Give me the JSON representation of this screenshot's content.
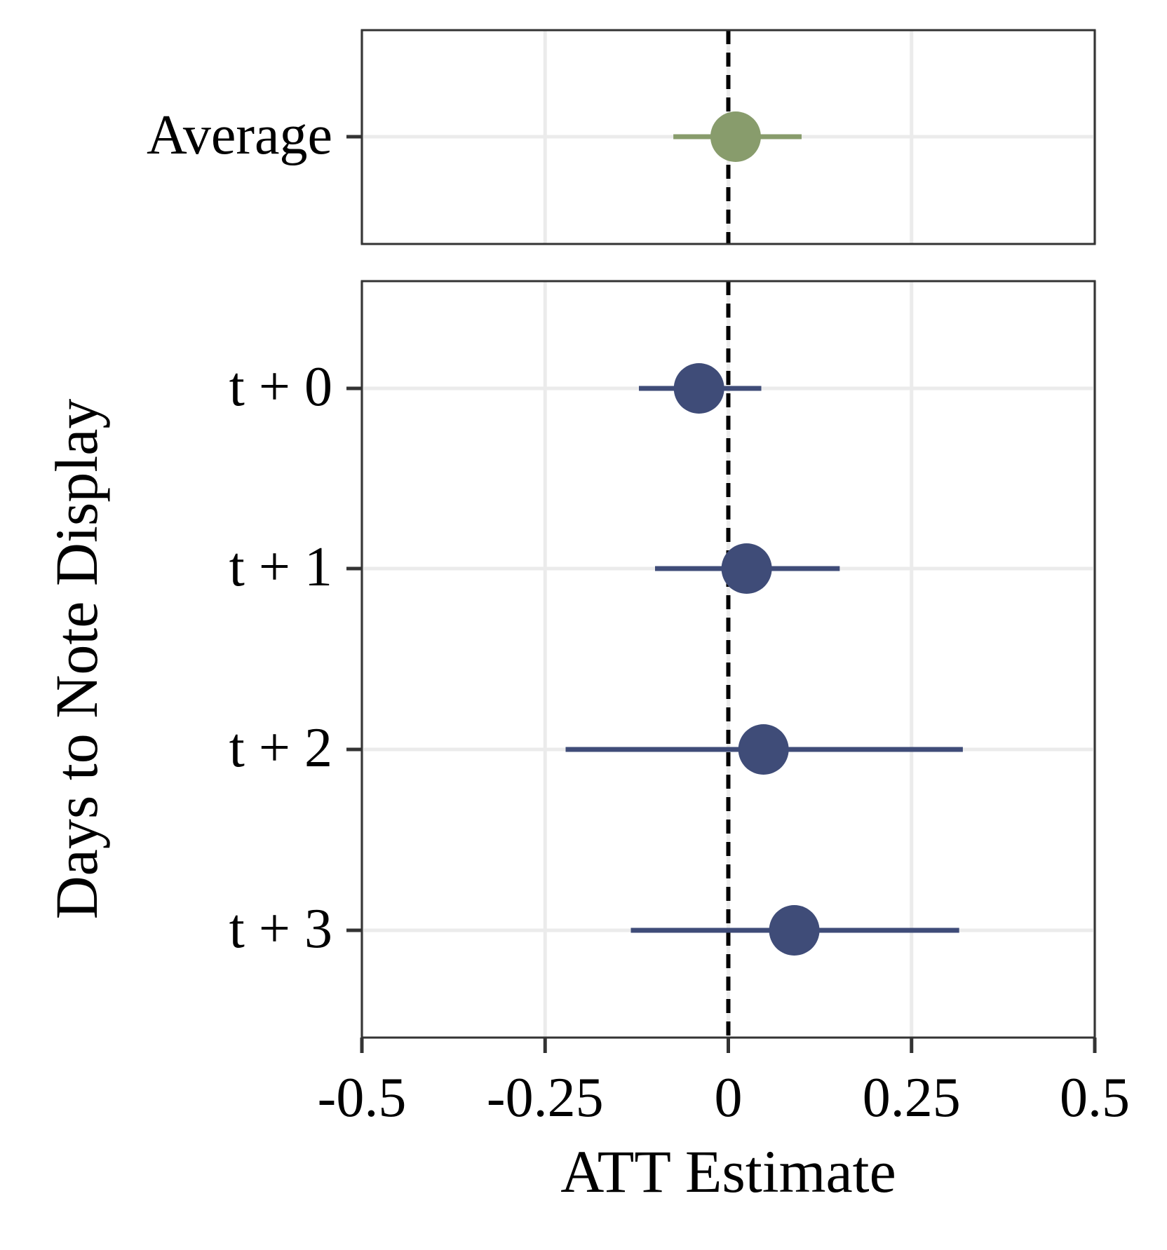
{
  "chart_data": {
    "type": "forest",
    "xlabel": "ATT Estimate",
    "ylabel": "Days to Note Display",
    "xlim": [
      -0.5,
      0.5
    ],
    "xticks": [
      -0.5,
      -0.25,
      0,
      0.25,
      0.5
    ],
    "xtick_labels": [
      "-0.5",
      "-0.25",
      "0",
      "0.25",
      "0.5"
    ],
    "reference_line": 0,
    "grid": true,
    "panels": [
      {
        "name": "average",
        "color": "#889c6c",
        "points": [
          {
            "label": "Average",
            "estimate": 0.01,
            "lower": -0.075,
            "upper": 0.1
          }
        ]
      },
      {
        "name": "by-day",
        "color": "#3f4c78",
        "points": [
          {
            "label": "t + 0",
            "estimate": -0.04,
            "lower": -0.122,
            "upper": 0.045
          },
          {
            "label": "t + 1",
            "estimate": 0.025,
            "lower": -0.1,
            "upper": 0.152
          },
          {
            "label": "t + 2",
            "estimate": 0.048,
            "lower": -0.222,
            "upper": 0.32
          },
          {
            "label": "t + 3",
            "estimate": 0.09,
            "lower": -0.133,
            "upper": 0.315
          }
        ]
      }
    ]
  }
}
